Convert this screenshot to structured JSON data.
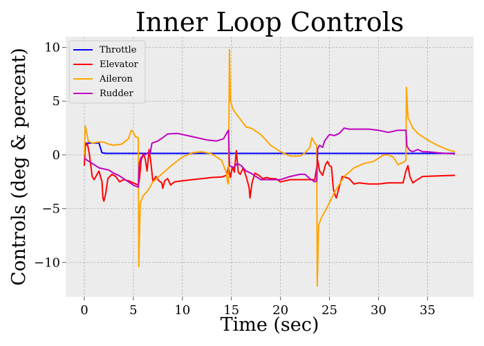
{
  "chart_data": {
    "type": "line",
    "title": "Inner Loop Controls",
    "xlabel": "Time (sec)",
    "ylabel": "Controls (deg & percent)",
    "xlim": [
      -1.9,
      39.7
    ],
    "ylim": [
      -13.2,
      11.0
    ],
    "xticks": [
      0,
      5,
      10,
      15,
      20,
      25,
      30,
      35
    ],
    "yticks": [
      -10,
      -5,
      0,
      5,
      10
    ],
    "ytick_labels": [
      "−10",
      "−5",
      "0",
      "5",
      "10"
    ],
    "grid": true,
    "legend_position": "top-left",
    "background": "#ececec",
    "series": [
      {
        "name": "Throttle",
        "color": "#0000ff",
        "points": [
          [
            0,
            0.9
          ],
          [
            0.2,
            1.1
          ],
          [
            1.5,
            1.1
          ],
          [
            1.8,
            0.2
          ],
          [
            2.2,
            0.15
          ],
          [
            37.8,
            0.15
          ]
        ]
      },
      {
        "name": "Elevator",
        "color": "#ff0000",
        "points": [
          [
            0,
            -1
          ],
          [
            0.1,
            0.8
          ],
          [
            0.3,
            1.1
          ],
          [
            0.5,
            0.2
          ],
          [
            0.8,
            -2.0
          ],
          [
            1.0,
            -2.3
          ],
          [
            1.3,
            -1.8
          ],
          [
            1.5,
            -1.5
          ],
          [
            1.8,
            -2.5
          ],
          [
            1.9,
            -4.0
          ],
          [
            2.0,
            -4.3
          ],
          [
            2.2,
            -3.5
          ],
          [
            2.4,
            -2.2
          ],
          [
            2.8,
            -1.8
          ],
          [
            3.2,
            -2.0
          ],
          [
            3.6,
            -2.5
          ],
          [
            4.0,
            -2.3
          ],
          [
            4.5,
            -2.4
          ],
          [
            5.0,
            -2.6
          ],
          [
            5.5,
            -2.8
          ],
          [
            5.6,
            -2.4
          ],
          [
            5.8,
            -0.5
          ],
          [
            6.0,
            0.1
          ],
          [
            6.2,
            -0.3
          ],
          [
            6.4,
            -1.5
          ],
          [
            6.6,
            0.5
          ],
          [
            6.8,
            -0.8
          ],
          [
            7.0,
            -2.5
          ],
          [
            7.3,
            -2.0
          ],
          [
            7.6,
            -2.4
          ],
          [
            7.9,
            -2.6
          ],
          [
            8.0,
            -3.1
          ],
          [
            8.2,
            -2.4
          ],
          [
            8.5,
            -2.2
          ],
          [
            8.8,
            -2.8
          ],
          [
            9.2,
            -2.5
          ],
          [
            10,
            -2.4
          ],
          [
            11,
            -2.3
          ],
          [
            12,
            -2.2
          ],
          [
            13,
            -2.1
          ],
          [
            14,
            -2.05
          ],
          [
            14.5,
            -1.9
          ],
          [
            14.7,
            -1.1
          ],
          [
            14.9,
            -2.1
          ],
          [
            15.1,
            -1.1
          ],
          [
            15.3,
            -1.6
          ],
          [
            15.5,
            0.4
          ],
          [
            15.7,
            -1.6
          ],
          [
            15.9,
            -1.8
          ],
          [
            16.2,
            -1.2
          ],
          [
            16.5,
            -2.0
          ],
          [
            16.8,
            -3.0
          ],
          [
            16.9,
            -4.0
          ],
          [
            17.1,
            -2.6
          ],
          [
            17.4,
            -1.7
          ],
          [
            17.8,
            -1.9
          ],
          [
            18.2,
            -2.2
          ],
          [
            18.6,
            -2.1
          ],
          [
            19.0,
            -2.2
          ],
          [
            19.5,
            -2.2
          ],
          [
            20,
            -2.5
          ],
          [
            21,
            -2.3
          ],
          [
            22,
            -2.3
          ],
          [
            23,
            -2.3
          ],
          [
            23.5,
            -2.3
          ],
          [
            23.8,
            -0.5
          ],
          [
            24.0,
            -1.5
          ],
          [
            24.3,
            -1.9
          ],
          [
            24.6,
            -0.9
          ],
          [
            24.8,
            -0.6
          ],
          [
            25.0,
            -1.0
          ],
          [
            25.2,
            -1.1
          ],
          [
            25.4,
            -3.2
          ],
          [
            25.6,
            -3.8
          ],
          [
            25.7,
            -4.0
          ],
          [
            25.9,
            -3.3
          ],
          [
            26.3,
            -2.0
          ],
          [
            26.7,
            -2.1
          ],
          [
            27.0,
            -2.2
          ],
          [
            27.5,
            -2.7
          ],
          [
            28,
            -2.6
          ],
          [
            29,
            -2.7
          ],
          [
            30,
            -2.7
          ],
          [
            31,
            -2.6
          ],
          [
            32,
            -2.6
          ],
          [
            32.5,
            -2.6
          ],
          [
            32.8,
            -1.5
          ],
          [
            33.0,
            -1.0
          ],
          [
            33.2,
            -2.0
          ],
          [
            33.5,
            -2.6
          ],
          [
            33.8,
            -2.4
          ],
          [
            34.5,
            -2.0
          ],
          [
            36,
            -1.95
          ],
          [
            37.8,
            -1.9
          ]
        ]
      },
      {
        "name": "Aileron",
        "color": "#ffa500",
        "points": [
          [
            0,
            0
          ],
          [
            0.1,
            2.7
          ],
          [
            0.2,
            2.3
          ],
          [
            0.4,
            1.3
          ],
          [
            0.8,
            1.1
          ],
          [
            1.5,
            1.2
          ],
          [
            2.0,
            1.2
          ],
          [
            2.5,
            1.0
          ],
          [
            3.0,
            0.9
          ],
          [
            3.8,
            1.0
          ],
          [
            4.5,
            1.5
          ],
          [
            4.8,
            2.3
          ],
          [
            5.0,
            2.1
          ],
          [
            5.2,
            1.7
          ],
          [
            5.5,
            1.6
          ],
          [
            5.55,
            -10.4
          ],
          [
            5.7,
            -4.5
          ],
          [
            6.0,
            -3.8
          ],
          [
            6.5,
            -3.3
          ],
          [
            7.0,
            -2.5
          ],
          [
            7.5,
            -2.1
          ],
          [
            8,
            -1.7
          ],
          [
            9,
            -0.9
          ],
          [
            10,
            -0.2
          ],
          [
            11,
            0.2
          ],
          [
            12,
            0.3
          ],
          [
            13,
            0.1
          ],
          [
            14,
            -0.5
          ],
          [
            14.5,
            -1.7
          ],
          [
            14.6,
            -2.5
          ],
          [
            14.7,
            -2.7
          ],
          [
            14.8,
            9.8
          ],
          [
            14.9,
            5.0
          ],
          [
            15.2,
            4.2
          ],
          [
            16,
            3.2
          ],
          [
            16.5,
            2.6
          ],
          [
            17,
            2.5
          ],
          [
            18,
            1.9
          ],
          [
            19,
            0.9
          ],
          [
            20,
            0.3
          ],
          [
            21,
            -0.1
          ],
          [
            22,
            -0.1
          ],
          [
            22.5,
            0.2
          ],
          [
            23.0,
            0.7
          ],
          [
            23.2,
            1.6
          ],
          [
            23.5,
            1.1
          ],
          [
            23.7,
            0.9
          ],
          [
            23.75,
            -12.2
          ],
          [
            23.9,
            -6.5
          ],
          [
            24.2,
            -5.8
          ],
          [
            24.8,
            -4.8
          ],
          [
            25.5,
            -3.5
          ],
          [
            26.5,
            -2.0
          ],
          [
            27.5,
            -1.2
          ],
          [
            28.5,
            -0.8
          ],
          [
            29.5,
            -0.6
          ],
          [
            30.0,
            -0.3
          ],
          [
            30.5,
            0.0
          ],
          [
            31.0,
            0.0
          ],
          [
            31.5,
            -0.2
          ],
          [
            32.0,
            -0.9
          ],
          [
            32.5,
            -0.7
          ],
          [
            32.8,
            -0.5
          ],
          [
            32.85,
            6.3
          ],
          [
            33.0,
            3.5
          ],
          [
            33.5,
            2.5
          ],
          [
            34,
            2.0
          ],
          [
            35,
            1.4
          ],
          [
            36,
            0.9
          ],
          [
            37,
            0.5
          ],
          [
            37.8,
            0.3
          ]
        ]
      },
      {
        "name": "Rudder",
        "color": "#bf00bf",
        "points": [
          [
            0,
            -0.3
          ],
          [
            0.3,
            -0.5
          ],
          [
            1.0,
            -0.9
          ],
          [
            1.5,
            -1.2
          ],
          [
            2.0,
            -1.3
          ],
          [
            2.5,
            -1.4
          ],
          [
            3.0,
            -1.7
          ],
          [
            3.5,
            -1.9
          ],
          [
            4.0,
            -2.2
          ],
          [
            4.5,
            -2.5
          ],
          [
            5.0,
            -2.8
          ],
          [
            5.5,
            -3.0
          ],
          [
            5.6,
            -0.8
          ],
          [
            5.8,
            -0.2
          ],
          [
            6.0,
            -0.1
          ],
          [
            6.3,
            0.1
          ],
          [
            6.5,
            0.2
          ],
          [
            6.7,
            0.1
          ],
          [
            6.9,
            1.1
          ],
          [
            7.2,
            1.2
          ],
          [
            7.5,
            1.3
          ],
          [
            8,
            1.6
          ],
          [
            8.5,
            1.95
          ],
          [
            9.5,
            2.0
          ],
          [
            10.5,
            1.8
          ],
          [
            11.5,
            1.6
          ],
          [
            12.5,
            1.4
          ],
          [
            13.5,
            1.3
          ],
          [
            14.2,
            1.5
          ],
          [
            14.5,
            2.0
          ],
          [
            14.7,
            2.3
          ],
          [
            14.8,
            -1.0
          ],
          [
            15.2,
            -1.2
          ],
          [
            15.6,
            -0.8
          ],
          [
            16,
            -1.0
          ],
          [
            16.5,
            -1.5
          ],
          [
            17,
            -1.7
          ],
          [
            17.5,
            -2.0
          ],
          [
            18,
            -2.3
          ],
          [
            19,
            -2.3
          ],
          [
            20,
            -2.3
          ],
          [
            21,
            -2.0
          ],
          [
            22,
            -1.8
          ],
          [
            22.5,
            -1.8
          ],
          [
            23,
            -2.2
          ],
          [
            23.5,
            -2.5
          ],
          [
            23.7,
            -2.4
          ],
          [
            23.8,
            0.6
          ],
          [
            24.0,
            0.9
          ],
          [
            24.3,
            0.7
          ],
          [
            24.5,
            1.3
          ],
          [
            25.0,
            1.9
          ],
          [
            25.5,
            1.8
          ],
          [
            26.0,
            2.0
          ],
          [
            26.5,
            2.5
          ],
          [
            27,
            2.4
          ],
          [
            28,
            2.4
          ],
          [
            29,
            2.4
          ],
          [
            30,
            2.3
          ],
          [
            31,
            2.1
          ],
          [
            31.5,
            2.2
          ],
          [
            32,
            2.3
          ],
          [
            32.8,
            2.3
          ],
          [
            32.9,
            0.8
          ],
          [
            33.2,
            0.4
          ],
          [
            33.5,
            0.3
          ],
          [
            34,
            0.5
          ],
          [
            34.5,
            0.3
          ],
          [
            35,
            0.3
          ],
          [
            36,
            0.2
          ],
          [
            37,
            0.15
          ],
          [
            37.8,
            0.1
          ]
        ]
      }
    ]
  }
}
